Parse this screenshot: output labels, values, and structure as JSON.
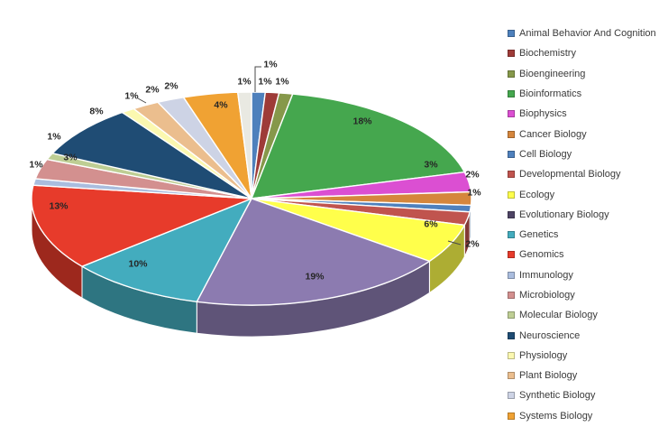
{
  "page": {
    "background": "#FFFFFF",
    "title": ""
  },
  "chart_data": {
    "type": "pie",
    "is_3d": true,
    "title": "",
    "legend_position": "right",
    "value_unit": "percent",
    "slices": [
      {
        "label": "Animal Behavior And Cognition",
        "value": 1,
        "data_label": "1%",
        "color": "#4E80BC"
      },
      {
        "label": "Biochemistry",
        "value": 1,
        "data_label": "1%",
        "color": "#9E3B38"
      },
      {
        "label": "Bioengineering",
        "value": 1,
        "data_label": "1%",
        "color": "#86984A"
      },
      {
        "label": "Bioinformatics",
        "value": 18,
        "data_label": "18%",
        "color": "#45A74E"
      },
      {
        "label": "Biophysics",
        "value": 3,
        "data_label": "3%",
        "color": "#DB4FD2"
      },
      {
        "label": "Cancer Biology",
        "value": 2,
        "data_label": "2%",
        "color": "#D5863C"
      },
      {
        "label": "Cell Biology",
        "value": 1,
        "data_label": "1%",
        "color": "#4F81BD"
      },
      {
        "label": "Developmental Biology",
        "value": 2,
        "data_label": "2%",
        "color": "#C0544E"
      },
      {
        "label": "Ecology",
        "value": 6,
        "data_label": "6%",
        "color": "#FFFF4B"
      },
      {
        "label": "Evolutionary Biology",
        "value": 19,
        "data_label": "19%",
        "color": "#8C7BB0",
        "swatch_color": "#4E4465"
      },
      {
        "label": "Genetics",
        "value": 10,
        "data_label": "10%",
        "color": "#43ACBE"
      },
      {
        "label": "Genomics",
        "value": 13,
        "data_label": "13%",
        "color": "#E73B2B"
      },
      {
        "label": "Immunology",
        "value": 1,
        "data_label": "1%",
        "color": "#AABDDE"
      },
      {
        "label": "Microbiology",
        "value": 3,
        "data_label": "3%",
        "color": "#D3908F"
      },
      {
        "label": "Molecular Biology",
        "value": 1,
        "data_label": "1%",
        "color": "#BECE94"
      },
      {
        "label": "Neuroscience",
        "value": 8,
        "data_label": "8%",
        "color": "#1F4C74"
      },
      {
        "label": "Physiology",
        "value": 1,
        "data_label": "1%",
        "color": "#FBF8B0"
      },
      {
        "label": "Plant Biology",
        "value": 2,
        "data_label": "2%",
        "color": "#EBBE8E"
      },
      {
        "label": "Synthetic Biology",
        "value": 2,
        "data_label": "2%",
        "color": "#CDD3E5"
      },
      {
        "label": "Systems Biology",
        "value": 4,
        "data_label": "4%",
        "color": "#F0A233"
      },
      {
        "label": "",
        "value": 1,
        "data_label": "1%",
        "color": "#E9E9E2",
        "in_visible_legend": false
      }
    ]
  }
}
